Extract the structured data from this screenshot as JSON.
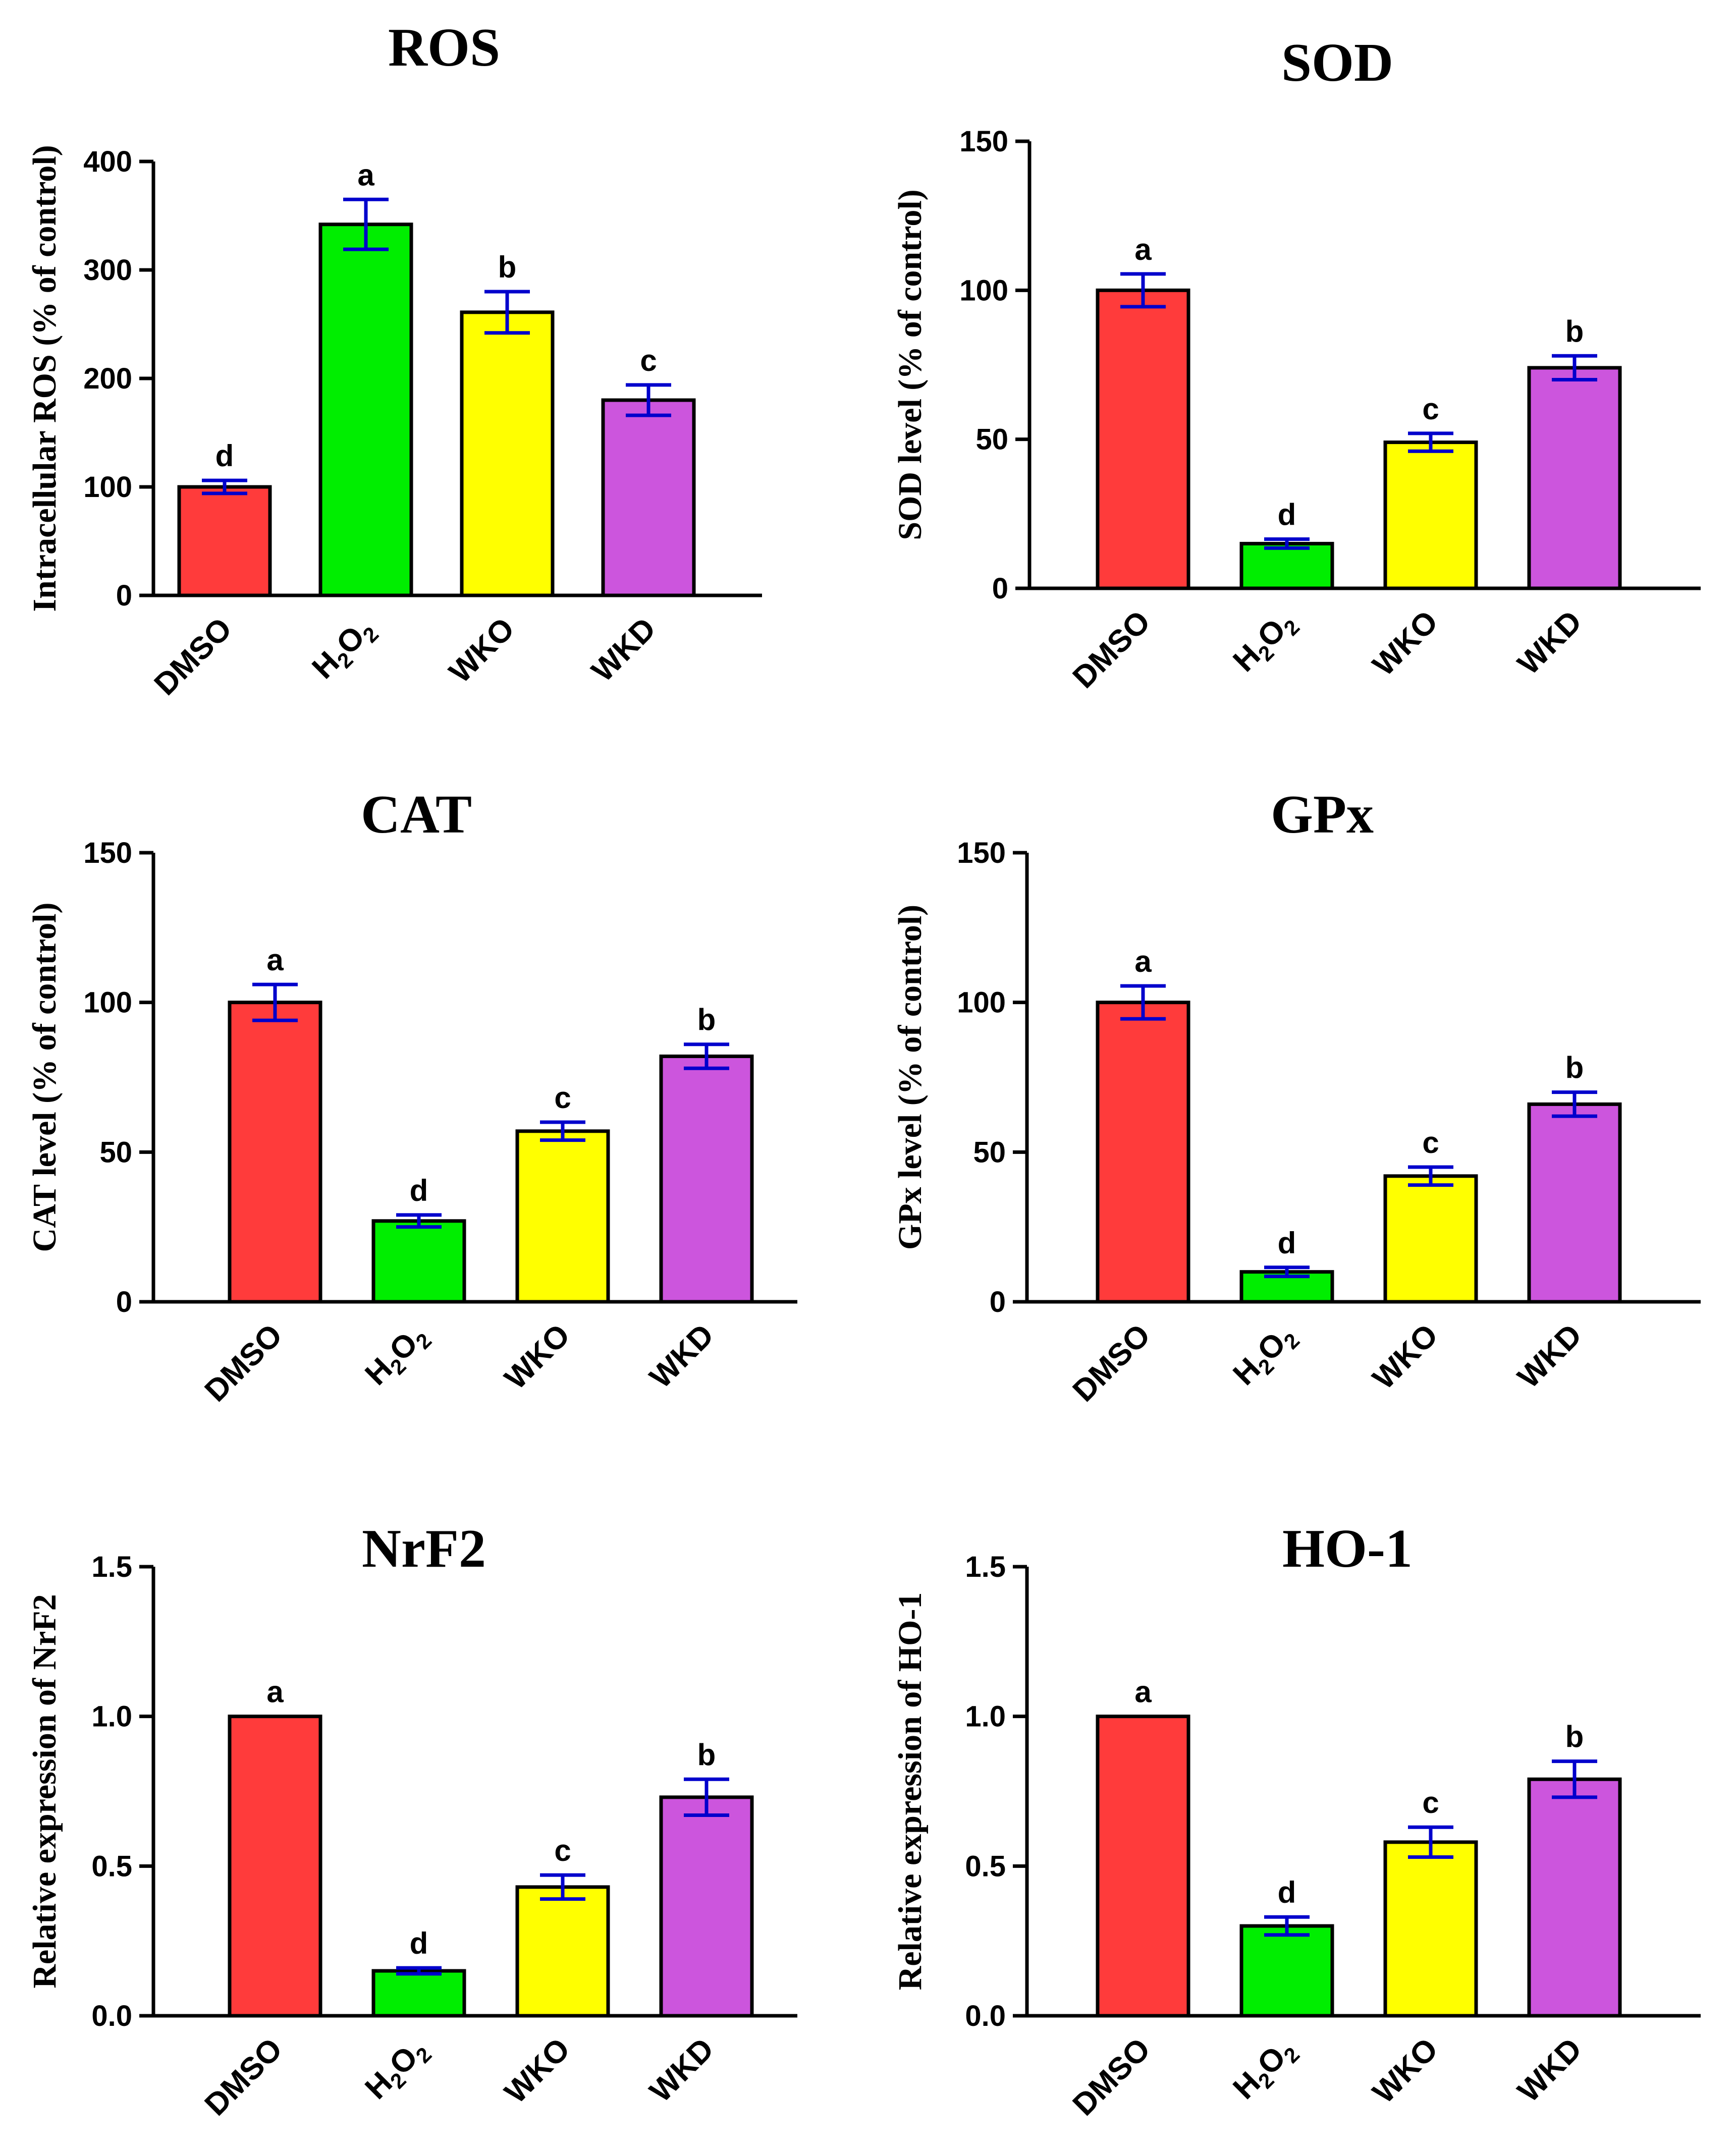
{
  "chart_data": [
    {
      "type": "bar",
      "title": "ROS",
      "ylabel": "Intracellular ROS (% of control)",
      "categories": [
        "DMSO",
        "H2O2",
        "WKO",
        "WKD"
      ],
      "category_labels": [
        {
          "main": "DMSO"
        },
        {
          "main": "H",
          "sub1": "2",
          "mid": "O",
          "sub2": "2"
        },
        {
          "main": "WKO"
        },
        {
          "main": "WKD"
        }
      ],
      "values": [
        100,
        342,
        261,
        180
      ],
      "errors": [
        6,
        23,
        19,
        14
      ],
      "significance": [
        "d",
        "a",
        "b",
        "c"
      ],
      "ylim": [
        0,
        400
      ],
      "yticks": [
        0,
        100,
        200,
        300,
        400
      ],
      "ytick_labels": [
        "0",
        "100",
        "200",
        "300",
        "400"
      ]
    },
    {
      "type": "bar",
      "title": "SOD",
      "ylabel": "SOD level (% of control)",
      "categories": [
        "DMSO",
        "H2O2",
        "WKO",
        "WKD"
      ],
      "category_labels": [
        {
          "main": "DMSO"
        },
        {
          "main": "H",
          "sub1": "2",
          "mid": "O",
          "sub2": "2"
        },
        {
          "main": "WKO"
        },
        {
          "main": "WKD"
        }
      ],
      "values": [
        100,
        15,
        49,
        74
      ],
      "errors": [
        5.5,
        1.5,
        3,
        4
      ],
      "significance": [
        "a",
        "d",
        "c",
        "b"
      ],
      "ylim": [
        0,
        150
      ],
      "yticks": [
        0,
        50,
        100,
        150
      ],
      "ytick_labels": [
        "0",
        "50",
        "100",
        "150"
      ]
    },
    {
      "type": "bar",
      "title": "CAT",
      "ylabel": "CAT level (% of control)",
      "categories": [
        "DMSO",
        "H2O2",
        "WKO",
        "WKD"
      ],
      "category_labels": [
        {
          "main": "DMSO"
        },
        {
          "main": "H",
          "sub1": "2",
          "mid": "O",
          "sub2": "2"
        },
        {
          "main": "WKO"
        },
        {
          "main": "WKD"
        }
      ],
      "values": [
        100,
        27,
        57,
        82
      ],
      "errors": [
        6,
        2,
        3,
        4
      ],
      "significance": [
        "a",
        "d",
        "c",
        "b"
      ],
      "ylim": [
        0,
        150
      ],
      "yticks": [
        0,
        50,
        100,
        150
      ],
      "ytick_labels": [
        "0",
        "50",
        "100",
        "150"
      ]
    },
    {
      "type": "bar",
      "title": "GPx",
      "ylabel": "GPx level (% of control)",
      "categories": [
        "DMSO",
        "H2O2",
        "WKO",
        "WKD"
      ],
      "category_labels": [
        {
          "main": "DMSO"
        },
        {
          "main": "H",
          "sub1": "2",
          "mid": "O",
          "sub2": "2"
        },
        {
          "main": "WKO"
        },
        {
          "main": "WKD"
        }
      ],
      "values": [
        100,
        10,
        42,
        66
      ],
      "errors": [
        5.5,
        1.5,
        3,
        4
      ],
      "significance": [
        "a",
        "d",
        "c",
        "b"
      ],
      "ylim": [
        0,
        150
      ],
      "yticks": [
        0,
        50,
        100,
        150
      ],
      "ytick_labels": [
        "0",
        "50",
        "100",
        "150"
      ]
    },
    {
      "type": "bar",
      "title": "NrF2",
      "ylabel": "Relative expression of NrF2",
      "categories": [
        "DMSO",
        "H2O2",
        "WKO",
        "WKD"
      ],
      "category_labels": [
        {
          "main": "DMSO"
        },
        {
          "main": "H",
          "sub1": "2",
          "mid": "O",
          "sub2": "2"
        },
        {
          "main": "WKO"
        },
        {
          "main": "WKD"
        }
      ],
      "values": [
        1.0,
        0.15,
        0.43,
        0.73
      ],
      "errors": [
        0,
        0.01,
        0.04,
        0.06
      ],
      "significance": [
        "a",
        "d",
        "c",
        "b"
      ],
      "ylim": [
        0,
        1.5
      ],
      "yticks": [
        0,
        0.5,
        1.0,
        1.5
      ],
      "ytick_labels": [
        "0.0",
        "0.5",
        "1.0",
        "1.5"
      ]
    },
    {
      "type": "bar",
      "title": "HO-1",
      "ylabel": "Relative expression of HO-1",
      "categories": [
        "DMSO",
        "H2O2",
        "WKO",
        "WKD"
      ],
      "category_labels": [
        {
          "main": "DMSO"
        },
        {
          "main": "H",
          "sub1": "2",
          "mid": "O",
          "sub2": "2"
        },
        {
          "main": "WKO"
        },
        {
          "main": "WKD"
        }
      ],
      "values": [
        1.0,
        0.3,
        0.58,
        0.79
      ],
      "errors": [
        0,
        0.03,
        0.05,
        0.06
      ],
      "significance": [
        "a",
        "d",
        "c",
        "b"
      ],
      "ylim": [
        0,
        1.5
      ],
      "yticks": [
        0,
        0.5,
        1.0,
        1.5
      ],
      "ytick_labels": [
        "0.0",
        "0.5",
        "1.0",
        "1.5"
      ]
    }
  ],
  "colors": {
    "bars": [
      "#ff3b3b",
      "#00ee00",
      "#ffff00",
      "#cc55dd"
    ],
    "error_bars": "#0000cc",
    "axis": "#000000"
  }
}
